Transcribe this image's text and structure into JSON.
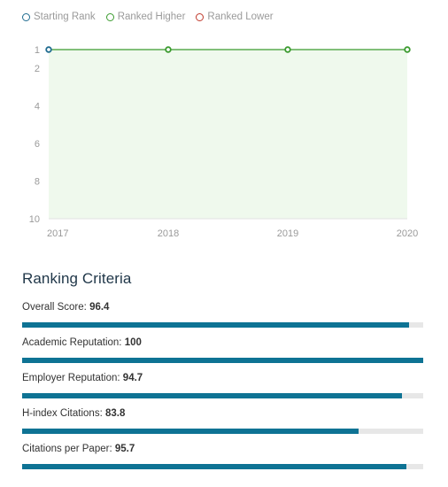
{
  "legend": {
    "items": [
      {
        "label": "Starting Rank",
        "color": "#1e6b8f"
      },
      {
        "label": "Ranked Higher",
        "color": "#3a9b2e"
      },
      {
        "label": "Ranked Lower",
        "color": "#c0392b"
      }
    ]
  },
  "chart_data": {
    "type": "line",
    "x": [
      "2017",
      "2018",
      "2019",
      "2020"
    ],
    "series": [
      {
        "values": [
          1,
          1,
          1,
          1
        ],
        "point_types": [
          "start",
          "higher",
          "higher",
          "higher"
        ]
      }
    ],
    "y_ticks": [
      1,
      2,
      4,
      6,
      8,
      10
    ],
    "ylim": [
      1,
      10
    ],
    "y_reversed": true,
    "line_color": "#3a9b2e",
    "area_color": "#eff9ed"
  },
  "criteria": {
    "title": "Ranking Criteria",
    "max": 100,
    "items": [
      {
        "label": "Overall Score:",
        "value": "96.4",
        "score": 96.4
      },
      {
        "label": "Academic Reputation:",
        "value": "100",
        "score": 100
      },
      {
        "label": "Employer Reputation:",
        "value": "94.7",
        "score": 94.7
      },
      {
        "label": "H-index Citations:",
        "value": "83.8",
        "score": 83.8
      },
      {
        "label": "Citations per Paper:",
        "value": "95.7",
        "score": 95.7
      }
    ],
    "bar_color": "#0e7394",
    "track_color": "#e7e7e7"
  }
}
